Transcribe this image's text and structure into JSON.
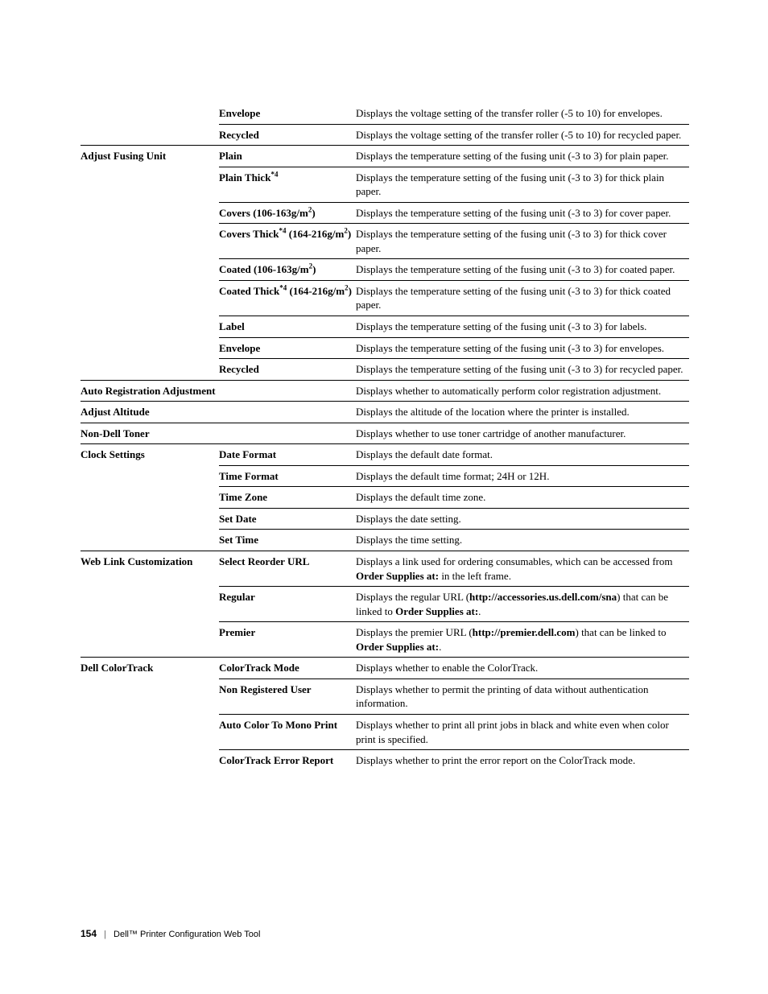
{
  "rows": [
    {
      "g": "",
      "s": "Envelope",
      "d": "Displays the voltage setting of the transfer roller (-5 to 10) for envelopes.",
      "sep": false
    },
    {
      "g": "",
      "s": "Recycled",
      "d": "Displays the voltage setting of the transfer roller (-5 to 10) for recycled paper.",
      "sep": true
    },
    {
      "g": "Adjust Fusing Unit",
      "s": "Plain",
      "d": "Displays the temperature setting of the fusing unit (-3 to 3) for plain paper.",
      "sep": "full"
    },
    {
      "g": "",
      "s_html": "Plain Thick<span class=\"sup\">*4</span>",
      "d": "Displays the temperature setting of the fusing unit (-3 to 3) for thick plain paper.",
      "sep": true
    },
    {
      "g": "",
      "s_html": "Covers (106-163g/m<span class=\"sub2\">2</span>)",
      "d": "Displays the temperature setting of the fusing unit (-3 to 3) for cover paper.",
      "sep": true
    },
    {
      "g": "",
      "s_html": "Covers Thick<span class=\"sup\">*4</span> (164-216g/m<span class=\"sub2\">2</span>)",
      "d": "Displays the temperature setting of the fusing unit (-3 to 3) for thick cover paper.",
      "sep": true
    },
    {
      "g": "",
      "s_html": "Coated (106-163g/m<span class=\"sub2\">2</span>)",
      "d": "Displays the temperature setting of the fusing unit (-3 to 3) for coated paper.",
      "sep": true
    },
    {
      "g": "",
      "s_html": "Coated Thick<span class=\"sup\">*4</span> (164-216g/m<span class=\"sub2\">2</span>)",
      "d": "Displays the temperature setting of the fusing unit (-3 to 3) for thick coated paper.",
      "sep": true
    },
    {
      "g": "",
      "s": "Label",
      "d": "Displays the temperature setting of the fusing unit (-3 to 3) for labels.",
      "sep": true
    },
    {
      "g": "",
      "s": "Envelope",
      "d": "Displays the temperature setting of the fusing unit (-3 to 3) for envelopes.",
      "sep": true
    },
    {
      "g": "",
      "s": "Recycled",
      "d": "Displays the temperature setting of the fusing unit (-3 to 3) for recycled paper.",
      "sep": true
    },
    {
      "g": "Auto Registration Adjustment",
      "span2": true,
      "d": "Displays whether to automatically perform color registration adjustment.",
      "sep": "full"
    },
    {
      "g": "Adjust Altitude",
      "span2": true,
      "d": "Displays the altitude of the location where the printer is installed.",
      "sep": "full"
    },
    {
      "g": "Non-Dell Toner",
      "span2": true,
      "d": "Displays whether to use toner cartridge of another manufacturer.",
      "sep": "full"
    },
    {
      "g": "Clock Settings",
      "s": "Date Format",
      "d": "Displays the default date format.",
      "sep": "full"
    },
    {
      "g": "",
      "s": "Time Format",
      "d": "Displays the default time format; 24H or 12H.",
      "sep": true
    },
    {
      "g": "",
      "s": "Time Zone",
      "d": "Displays the default time zone.",
      "sep": true
    },
    {
      "g": "",
      "s": "Set Date",
      "d": "Displays the date setting.",
      "sep": true
    },
    {
      "g": "",
      "s": "Set Time",
      "d": "Displays the time setting.",
      "sep": true
    },
    {
      "g": "Web Link Customization",
      "s": "Select Reorder URL",
      "d_html": "Displays a link used for ordering consumables, which can be accessed from <span class=\"bold-inline\">Order Supplies at:</span> in the left frame.",
      "sep": "full"
    },
    {
      "g": "",
      "s": "Regular",
      "d_html": "Displays the regular URL (<span class=\"bold-inline\">http://accessories.us.dell.com/sna</span>) that can be linked to <span class=\"bold-inline\">Order Supplies at:</span>.",
      "sep": true
    },
    {
      "g": "",
      "s": "Premier",
      "d_html": "Displays the premier URL (<span class=\"bold-inline\">http://premier.dell.com</span>) that can be linked to <span class=\"bold-inline\">Order Supplies at:</span>.",
      "sep": true
    },
    {
      "g": "Dell ColorTrack",
      "s": "ColorTrack Mode",
      "d": "Displays whether to enable the ColorTrack.",
      "sep": "full"
    },
    {
      "g": "",
      "s": "Non Registered User",
      "d": "Displays whether to permit the printing of data without authentication information.",
      "sep": true
    },
    {
      "g": "",
      "s": "Auto Color To Mono Print",
      "d": "Displays whether to print all print jobs in black and white even when color print is specified.",
      "sep": true
    },
    {
      "g": "",
      "s": "ColorTrack Error Report",
      "d": "Displays whether to print the error report on the ColorTrack mode.",
      "sep": true
    }
  ],
  "footer": {
    "page": "154",
    "title": "Dell™ Printer Configuration Web Tool"
  }
}
